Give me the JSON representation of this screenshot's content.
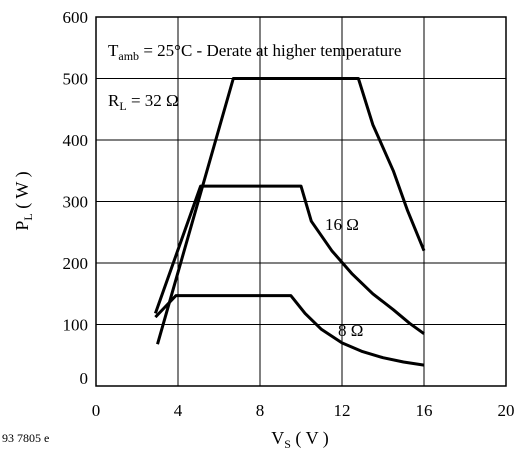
{
  "chart_data": {
    "type": "line",
    "xlabel": {
      "main": "V",
      "sub": "S",
      "unit": " ( V )"
    },
    "ylabel": {
      "main": "P",
      "sub": "L",
      "unit": " ( W )"
    },
    "xlim": [
      0,
      20
    ],
    "ylim": [
      0,
      600
    ],
    "xticks": [
      "0",
      "4",
      "8",
      "12",
      "16",
      "20"
    ],
    "yticks": [
      "0",
      "100",
      "200",
      "300",
      "400",
      "500",
      "600"
    ],
    "grid": true,
    "annotations": {
      "temperature": {
        "prefix": "T",
        "sub": "amb",
        "rest": " = 25°C - Derate at higher temperature"
      },
      "rl": {
        "prefix": "R",
        "sub": "L",
        "rest": " = 32 Ω"
      },
      "ohm16": "16 Ω",
      "ohm8": "8 Ω"
    },
    "figure_code": "93 7805 e",
    "series": [
      {
        "load": "32 Ω",
        "points": [
          [
            3.0,
            68
          ],
          [
            6.7,
            500
          ],
          [
            12.8,
            500
          ],
          [
            13.5,
            425
          ],
          [
            14.5,
            350
          ],
          [
            15.2,
            285
          ],
          [
            16.0,
            220
          ]
        ]
      },
      {
        "load": "16 Ω",
        "points": [
          [
            2.9,
            118
          ],
          [
            5.1,
            325
          ],
          [
            10.0,
            325
          ],
          [
            10.5,
            268
          ],
          [
            11.5,
            220
          ],
          [
            12.5,
            182
          ],
          [
            13.5,
            150
          ],
          [
            14.5,
            124
          ],
          [
            15.3,
            102
          ],
          [
            16.0,
            85
          ]
        ]
      },
      {
        "load": "8 Ω",
        "points": [
          [
            2.9,
            112
          ],
          [
            3.9,
            147
          ],
          [
            9.5,
            147
          ],
          [
            10.2,
            118
          ],
          [
            11.0,
            92
          ],
          [
            12.0,
            70
          ],
          [
            13.0,
            56
          ],
          [
            14.0,
            46
          ],
          [
            15.0,
            39
          ],
          [
            16.0,
            34
          ]
        ]
      }
    ]
  }
}
